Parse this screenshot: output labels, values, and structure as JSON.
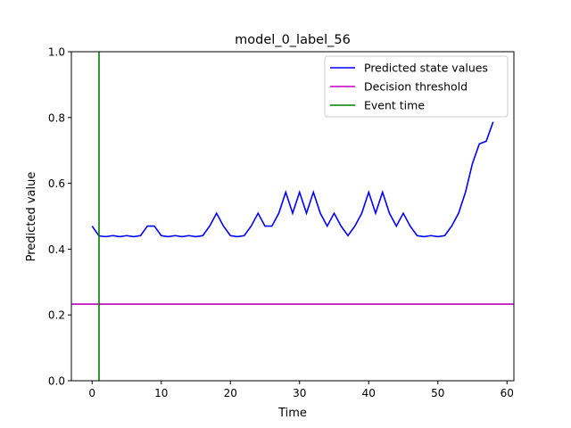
{
  "chart_data": {
    "type": "line",
    "title": "model_0_label_56",
    "xlabel": "Time",
    "ylabel": "Predicted value",
    "xlim": [
      -3,
      61
    ],
    "ylim": [
      0.0,
      1.0
    ],
    "xticks": [
      0,
      10,
      20,
      30,
      40,
      50,
      60
    ],
    "xtick_labels": [
      "0",
      "10",
      "20",
      "30",
      "40",
      "50",
      "60"
    ],
    "yticks": [
      0.0,
      0.2,
      0.4,
      0.6,
      0.8,
      1.0
    ],
    "ytick_labels": [
      "0.0",
      "0.2",
      "0.4",
      "0.6",
      "0.8",
      "1.0"
    ],
    "grid": false,
    "legend_position": "upper-right",
    "series": [
      {
        "name": "Predicted state values",
        "color": "#0000ff",
        "x": [
          0,
          1,
          2,
          3,
          4,
          5,
          6,
          7,
          8,
          9,
          10,
          11,
          12,
          13,
          14,
          15,
          16,
          17,
          18,
          19,
          20,
          21,
          22,
          23,
          24,
          25,
          26,
          27,
          28,
          29,
          30,
          31,
          32,
          33,
          34,
          35,
          36,
          37,
          38,
          39,
          40,
          41,
          42,
          43,
          44,
          45,
          46,
          47,
          48,
          49,
          50,
          51,
          52,
          53,
          54,
          55,
          56,
          57,
          58
        ],
        "y": [
          0.47,
          0.44,
          0.438,
          0.441,
          0.438,
          0.441,
          0.438,
          0.441,
          0.47,
          0.47,
          0.441,
          0.438,
          0.441,
          0.438,
          0.441,
          0.438,
          0.441,
          0.47,
          0.509,
          0.47,
          0.441,
          0.438,
          0.441,
          0.47,
          0.509,
          0.47,
          0.47,
          0.509,
          0.573,
          0.509,
          0.573,
          0.509,
          0.573,
          0.509,
          0.47,
          0.509,
          0.47,
          0.441,
          0.47,
          0.509,
          0.573,
          0.509,
          0.573,
          0.509,
          0.47,
          0.509,
          0.47,
          0.441,
          0.438,
          0.441,
          0.438,
          0.441,
          0.47,
          0.509,
          0.573,
          0.66,
          0.72,
          0.728,
          0.787
        ]
      }
    ],
    "hlines": [
      {
        "name": "Decision threshold",
        "color": "#bf00bf",
        "y": 0.233
      }
    ],
    "vlines": [
      {
        "name": "Event time",
        "color": "#008000",
        "x": 1
      }
    ]
  }
}
